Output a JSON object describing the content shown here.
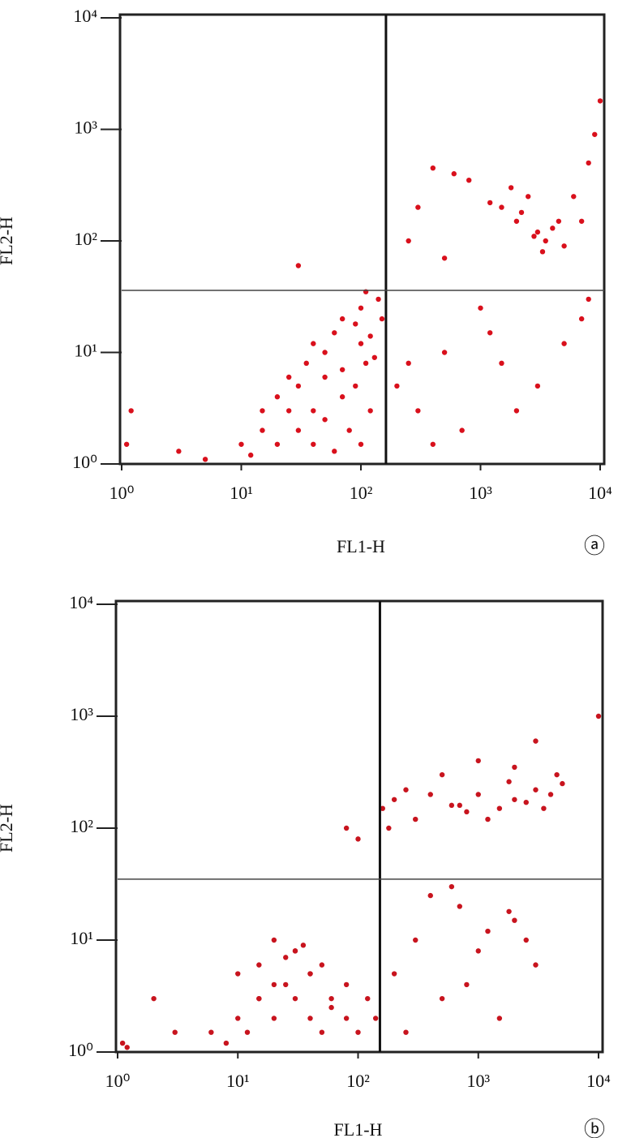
{
  "chart_data": [
    {
      "type": "scatter",
      "xlabel": "FL1-H",
      "ylabel": "FL2-H",
      "panel_label": "ⓐ",
      "xscale": "log",
      "yscale": "log",
      "color": "#d9101c",
      "xlim": [
        1,
        10000
      ],
      "ylim": [
        1,
        10000
      ],
      "xticks": [
        {
          "value": 1,
          "label": "10⁰"
        },
        {
          "value": 10,
          "label": "10¹"
        },
        {
          "value": 100,
          "label": "10²"
        },
        {
          "value": 1000,
          "label": "10³"
        },
        {
          "value": 10000,
          "label": "10⁴"
        }
      ],
      "yticks": [
        {
          "value": 1,
          "label": "10⁰"
        },
        {
          "value": 10,
          "label": "10¹"
        },
        {
          "value": 100,
          "label": "10²"
        },
        {
          "value": 1000,
          "label": "10³"
        },
        {
          "value": 10000,
          "label": "10⁴"
        }
      ],
      "quadrant_x": 162,
      "quadrant_y": 36,
      "x": [
        10,
        12,
        15,
        20,
        25,
        30,
        40,
        50,
        60,
        80,
        100,
        120,
        15,
        20,
        30,
        40,
        50,
        70,
        90,
        110,
        25,
        35,
        50,
        70,
        100,
        130,
        40,
        60,
        90,
        120,
        70,
        100,
        140,
        110,
        150,
        5,
        3,
        1.2,
        1.1,
        30,
        1500,
        2000,
        2500,
        3000,
        3500,
        4000,
        5000,
        2200,
        2800,
        3300,
        4500,
        1200,
        1800,
        600,
        800,
        400,
        300,
        6000,
        8000,
        10000,
        9000,
        7000,
        250,
        500,
        200,
        250,
        300,
        500,
        700,
        1200,
        1500,
        2000,
        3000,
        5000,
        7000,
        400,
        1000,
        8000
      ],
      "values": [
        1.5,
        1.2,
        2,
        1.5,
        3,
        2,
        1.5,
        2.5,
        1.3,
        2,
        1.5,
        3,
        3,
        4,
        5,
        3,
        6,
        4,
        5,
        8,
        6,
        8,
        10,
        7,
        12,
        9,
        12,
        15,
        18,
        14,
        20,
        25,
        30,
        35,
        20,
        1.1,
        1.3,
        3,
        1.5,
        60,
        200,
        150,
        250,
        120,
        100,
        130,
        90,
        180,
        110,
        80,
        150,
        220,
        300,
        400,
        350,
        450,
        200,
        250,
        500,
        1800,
        900,
        150,
        100,
        70,
        5,
        8,
        3,
        10,
        2,
        15,
        8,
        3,
        5,
        12,
        20,
        1.5,
        25,
        30
      ]
    },
    {
      "type": "scatter",
      "xlabel": "FL1-H",
      "ylabel": "FL2-H",
      "panel_label": "ⓑ",
      "xscale": "log",
      "yscale": "log",
      "color": "#c8141e",
      "xlim": [
        1,
        10000
      ],
      "ylim": [
        1,
        10000
      ],
      "xticks": [
        {
          "value": 1,
          "label": "10⁰"
        },
        {
          "value": 10,
          "label": "10¹"
        },
        {
          "value": 100,
          "label": "10²"
        },
        {
          "value": 1000,
          "label": "10³"
        },
        {
          "value": 10000,
          "label": "10⁴"
        }
      ],
      "yticks": [
        {
          "value": 1,
          "label": "10⁰"
        },
        {
          "value": 10,
          "label": "10¹"
        },
        {
          "value": 100,
          "label": "10²"
        },
        {
          "value": 1000,
          "label": "10³"
        },
        {
          "value": 10000,
          "label": "10⁴"
        }
      ],
      "quadrant_x": 152,
      "quadrant_y": 35,
      "x": [
        6,
        8,
        10,
        12,
        15,
        20,
        25,
        30,
        40,
        50,
        60,
        80,
        100,
        120,
        140,
        10,
        15,
        20,
        30,
        40,
        60,
        80,
        15,
        25,
        35,
        50,
        20,
        30,
        40,
        3,
        2,
        1.1,
        1.2,
        160,
        200,
        300,
        400,
        600,
        800,
        1000,
        1500,
        2000,
        2500,
        3000,
        4000,
        5000,
        180,
        250,
        500,
        700,
        1200,
        1800,
        3500,
        4500,
        1000,
        2000,
        3000,
        100,
        80,
        10000,
        200,
        300,
        500,
        700,
        1000,
        1200,
        1500,
        2000,
        3000,
        400,
        800,
        2500,
        250,
        600,
        1800
      ],
      "values": [
        1.5,
        1.2,
        2,
        1.5,
        3,
        2,
        4,
        3,
        2,
        1.5,
        2.5,
        2,
        1.5,
        3,
        2,
        5,
        6,
        4,
        8,
        5,
        3,
        4,
        3,
        7,
        9,
        6,
        10,
        8,
        5,
        1.5,
        3,
        1.2,
        1.1,
        150,
        180,
        120,
        200,
        160,
        140,
        200,
        150,
        180,
        170,
        220,
        200,
        250,
        100,
        220,
        300,
        160,
        120,
        260,
        150,
        300,
        400,
        350,
        600,
        80,
        100,
        1000,
        5,
        10,
        3,
        20,
        8,
        12,
        2,
        15,
        6,
        25,
        4,
        10,
        1.5,
        30,
        18
      ]
    }
  ]
}
